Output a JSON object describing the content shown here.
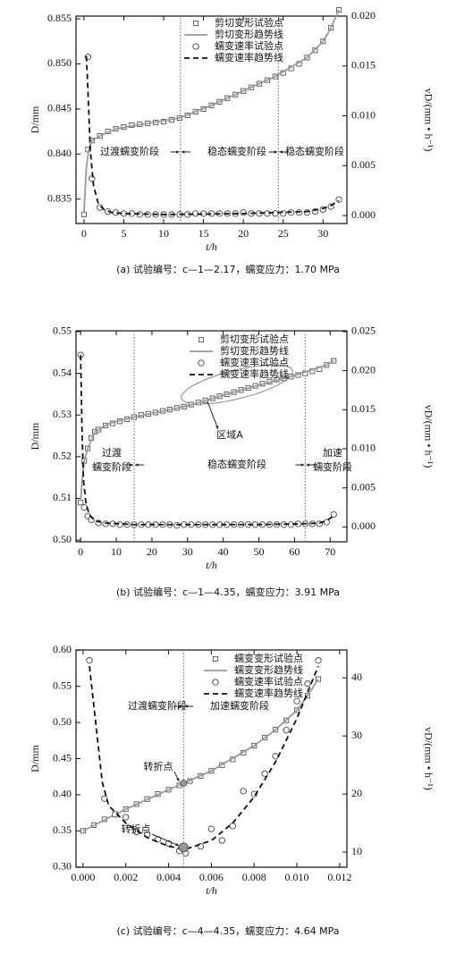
{
  "chart_data": [
    {
      "type": "scatter-line",
      "x_label": "t/h",
      "y_label": "D/mm",
      "y2_label": "vD/(mm • h⁻¹)",
      "caption": "(a) 试验编号：c—1—2.17，蠕变应力：1.70 MPa",
      "xlim": [
        -1,
        33
      ],
      "xticks": [
        0,
        5,
        10,
        15,
        20,
        25,
        30
      ],
      "ylim": [
        0.8323,
        0.8553
      ],
      "yticks": [
        {
          "value": 0.835,
          "label": "0.835"
        },
        {
          "value": 0.84,
          "label": "0.840"
        },
        {
          "value": 0.845,
          "label": "0.845"
        },
        {
          "value": 0.85,
          "label": "0.850"
        },
        {
          "value": 0.855,
          "label": "0.855"
        }
      ],
      "y2lim": [
        -0.0008,
        0.02
      ],
      "y2ticks": [
        {
          "value": 0,
          "label": "0.000"
        },
        {
          "value": 0.005,
          "label": "0.005"
        },
        {
          "value": 0.01,
          "label": "0.010"
        },
        {
          "value": 0.015,
          "label": "0.015"
        },
        {
          "value": 0.02,
          "label": "0.020"
        }
      ],
      "legend": "upper right",
      "vlines": [
        12.1,
        24.4
      ],
      "stages": [
        [
          "过渡蠕变阶段"
        ],
        [
          "稳态蠕变阶段"
        ],
        [
          "稳态蠕变阶段"
        ]
      ],
      "series": [
        {
          "name": "剪切变形试验点",
          "marker": "square",
          "color": "#555555",
          "axis": "y",
          "x": [
            0,
            0.5,
            1,
            2,
            3,
            4,
            5,
            6,
            7,
            8,
            9,
            10,
            11,
            12,
            13,
            14,
            15,
            16,
            17,
            18,
            19,
            20,
            21,
            22,
            23,
            24,
            25,
            26,
            27,
            28,
            29,
            30,
            31,
            32
          ],
          "values": [
            0.8333,
            0.8405,
            0.8415,
            0.842,
            0.8425,
            0.8428,
            0.843,
            0.8432,
            0.8433,
            0.8434,
            0.8435,
            0.8436,
            0.8438,
            0.844,
            0.8443,
            0.8447,
            0.845,
            0.8454,
            0.8458,
            0.8462,
            0.8466,
            0.847,
            0.8474,
            0.8478,
            0.8482,
            0.8486,
            0.849,
            0.8495,
            0.85,
            0.8507,
            0.8515,
            0.8525,
            0.854,
            0.856
          ]
        },
        {
          "name": "剪切变形趋势线",
          "marker": "line",
          "color": "#999999",
          "axis": "y",
          "x": [
            0,
            0.3,
            0.6,
            1,
            2,
            4,
            8,
            12,
            16,
            20,
            24,
            28,
            30,
            31,
            32
          ],
          "values": [
            0.8335,
            0.8385,
            0.8405,
            0.8415,
            0.842,
            0.8428,
            0.8434,
            0.844,
            0.8454,
            0.847,
            0.8486,
            0.8507,
            0.8525,
            0.854,
            0.856
          ]
        },
        {
          "name": "蠕变速率试验点",
          "marker": "circle",
          "color": "#444444",
          "axis": "y2",
          "x": [
            0.5,
            1,
            2,
            3,
            4,
            5,
            6,
            7,
            8,
            9,
            10,
            11,
            12,
            13,
            14,
            15,
            16,
            17,
            18,
            19,
            20,
            21,
            22,
            23,
            24,
            25,
            26,
            27,
            28,
            29,
            30,
            31,
            32
          ],
          "values": [
            0.0159,
            0.0037,
            0.0008,
            0.0004,
            0.0003,
            0.0002,
            0.0002,
            0.0001,
            0.0001,
            0.0001,
            0.0001,
            0.0001,
            0.0001,
            0.0001,
            0.0002,
            0.0002,
            0.0002,
            0.0002,
            0.0002,
            0.0002,
            0.0003,
            0.0002,
            0.0002,
            0.0002,
            0.0002,
            0.0002,
            0.0003,
            0.0003,
            0.0003,
            0.0004,
            0.0006,
            0.0009,
            0.0016
          ]
        },
        {
          "name": "蠕变速率趋势线",
          "marker": "dashed",
          "color": "#111111",
          "axis": "y2",
          "x": [
            0.3,
            0.5,
            0.8,
            1.2,
            1.8,
            2.5,
            3.5,
            5,
            10,
            20,
            28,
            30,
            31,
            32
          ],
          "values": [
            0.016,
            0.0125,
            0.0065,
            0.003,
            0.0012,
            0.0006,
            0.0003,
            0.0002,
            0.0001,
            0.0002,
            0.0004,
            0.0007,
            0.001,
            0.0015
          ]
        }
      ]
    },
    {
      "type": "scatter-line",
      "x_label": "t/h",
      "y_label": "D/mm",
      "y2_label": "vD/(mm • h⁻¹)",
      "caption": "(b) 试验编号：c—1—4.35，蠕变应力：3.91 MPa",
      "xlim": [
        -1.3,
        74.7
      ],
      "xticks": [
        0,
        10,
        20,
        30,
        40,
        50,
        60,
        70
      ],
      "ylim": [
        0.4996,
        0.5502
      ],
      "yticks": [
        {
          "value": 0.5,
          "label": "0.50"
        },
        0.51,
        0.52,
        0.53,
        0.54,
        0.55
      ],
      "y2lim": [
        -0.0019,
        0.0251
      ],
      "y2ticks": [
        {
          "value": 0,
          "label": "0.000"
        },
        {
          "value": 0.005,
          "label": "0.005"
        },
        {
          "value": 0.01,
          "label": "0.010"
        },
        {
          "value": 0.015,
          "label": "0.015"
        },
        {
          "value": 0.02,
          "label": "0.020"
        },
        {
          "value": 0.025,
          "label": "0.025"
        }
      ],
      "legend": "upper right",
      "vlines": [
        15,
        63
      ],
      "stages": [
        [
          "过渡",
          "蠕变阶段"
        ],
        [
          "稳态蠕变阶段"
        ],
        [
          "加速",
          "蠕变阶段"
        ]
      ],
      "annotations": [
        {
          "text": "区域A"
        }
      ],
      "series": [
        {
          "name": "剪切变形试验点",
          "marker": "square",
          "color": "#555555",
          "axis": "y",
          "x": [
            0,
            1,
            2,
            3,
            4,
            5,
            7,
            9,
            11,
            13,
            15,
            17,
            19,
            21,
            23,
            25,
            27,
            29,
            31,
            33,
            35,
            37,
            39,
            41,
            43,
            45,
            47,
            49,
            51,
            53,
            55,
            57,
            59,
            61,
            63,
            65,
            67,
            69,
            71
          ],
          "values": [
            0.509,
            0.519,
            0.522,
            0.5245,
            0.526,
            0.5265,
            0.5275,
            0.528,
            0.5285,
            0.529,
            0.5295,
            0.53,
            0.5303,
            0.5306,
            0.531,
            0.5313,
            0.5317,
            0.532,
            0.5325,
            0.533,
            0.5335,
            0.534,
            0.5345,
            0.535,
            0.5355,
            0.536,
            0.5365,
            0.537,
            0.5375,
            0.538,
            0.5385,
            0.5388,
            0.5392,
            0.5396,
            0.54,
            0.5405,
            0.541,
            0.542,
            0.543
          ]
        },
        {
          "name": "剪切变形趋势线",
          "marker": "line",
          "color": "#999999",
          "axis": "y",
          "x": [
            0,
            0.5,
            1,
            2,
            4,
            8,
            15,
            30,
            45,
            60,
            66,
            69,
            71
          ],
          "values": [
            0.5095,
            0.515,
            0.519,
            0.522,
            0.526,
            0.528,
            0.5295,
            0.5322,
            0.536,
            0.5395,
            0.5412,
            0.542,
            0.543
          ]
        },
        {
          "name": "蠕变速率试验点",
          "marker": "circle",
          "color": "#444444",
          "axis": "y2",
          "x": [
            0,
            1,
            2,
            3,
            5,
            7,
            9,
            11,
            13,
            15,
            17,
            19,
            21,
            23,
            25,
            27,
            29,
            31,
            33,
            35,
            37,
            39,
            41,
            43,
            45,
            47,
            49,
            51,
            53,
            55,
            57,
            59,
            61,
            63,
            65,
            67,
            69,
            71
          ],
          "values": [
            0.022,
            0.0025,
            0.0014,
            0.0009,
            0.0005,
            0.0004,
            0.0004,
            0.0003,
            0.0003,
            0.0003,
            0.0003,
            0.0003,
            0.0003,
            0.0003,
            0.0003,
            0.0002,
            0.0003,
            0.0003,
            0.0003,
            0.0003,
            0.0003,
            0.0003,
            0.0003,
            0.0003,
            0.0003,
            0.0003,
            0.0003,
            0.0003,
            0.0003,
            0.0003,
            0.0003,
            0.0003,
            0.0004,
            0.0004,
            0.0004,
            0.0004,
            0.0006,
            0.0016
          ]
        },
        {
          "name": "蠕变速率趋势线",
          "marker": "dashed",
          "color": "#111111",
          "axis": "y2",
          "x": [
            0,
            0.4,
            0.8,
            1.5,
            2.5,
            4,
            7,
            15,
            30,
            50,
            62,
            67,
            69,
            71
          ],
          "values": [
            0.022,
            0.012,
            0.006,
            0.003,
            0.0015,
            0.0008,
            0.0005,
            0.0003,
            0.0003,
            0.0003,
            0.0004,
            0.0005,
            0.0008,
            0.0014
          ]
        }
      ]
    },
    {
      "type": "scatter-line",
      "x_label": "t/h",
      "y_label": "D/mm",
      "y2_label": "vD/(mm • h⁻¹)",
      "caption": "(c) 试验编号：c—4—4.35，蠕变应力：4.64 MPa",
      "xlim": [
        -0.00033,
        0.01234
      ],
      "xticks": [
        {
          "value": 0,
          "label": "0.000"
        },
        {
          "value": 0.002,
          "label": "0.002"
        },
        {
          "value": 0.004,
          "label": "0.004"
        },
        {
          "value": 0.006,
          "label": "0.006"
        },
        {
          "value": 0.008,
          "label": "0.008"
        },
        {
          "value": 0.01,
          "label": "0.010"
        },
        {
          "value": 0.012,
          "label": "0.012"
        }
      ],
      "ylim": [
        0.2997,
        0.6003
      ],
      "yticks": [
        {
          "value": 0.3,
          "label": "0.30"
        },
        0.35,
        {
          "value": 0.4,
          "label": "0.40"
        },
        0.45,
        {
          "value": 0.5,
          "label": "0.50"
        },
        0.55,
        {
          "value": 0.6,
          "label": "0.60"
        }
      ],
      "y2lim": [
        7.4,
        44.8
      ],
      "y2ticks": [
        10,
        20,
        30,
        40
      ],
      "legend": "upper right",
      "vlines": [
        0.0047
      ],
      "stages": [
        [
          "过渡蠕变阶段"
        ],
        [
          "加速蠕变阶段"
        ]
      ],
      "annotations": [
        {
          "text": "转折点",
          "x": 0.0047,
          "y": 0.416
        },
        {
          "text": "转折点",
          "x": 0.0047,
          "y": 10.8,
          "axis": "y2"
        }
      ],
      "series": [
        {
          "name": "蠕变变形试验点",
          "marker": "square",
          "color": "#555555",
          "axis": "y",
          "x": [
            0,
            0.0005,
            0.001,
            0.0015,
            0.002,
            0.0025,
            0.003,
            0.0035,
            0.004,
            0.0045,
            0.005,
            0.0055,
            0.006,
            0.0065,
            0.007,
            0.0075,
            0.008,
            0.0085,
            0.009,
            0.0095,
            0.01,
            0.0105,
            0.011
          ],
          "values": [
            0.35,
            0.358,
            0.366,
            0.373,
            0.38,
            0.387,
            0.394,
            0.401,
            0.407,
            0.413,
            0.419,
            0.426,
            0.433,
            0.441,
            0.449,
            0.458,
            0.468,
            0.479,
            0.49,
            0.503,
            0.517,
            0.537,
            0.56
          ]
        },
        {
          "name": "蠕变变形趋势线",
          "marker": "line",
          "color": "#999999",
          "axis": "y",
          "x": [
            0,
            0.002,
            0.004,
            0.006,
            0.008,
            0.009,
            0.01,
            0.0105,
            0.011
          ],
          "values": [
            0.35,
            0.38,
            0.407,
            0.433,
            0.468,
            0.49,
            0.517,
            0.537,
            0.56
          ]
        },
        {
          "name": "蠕变速率试验点",
          "marker": "circle",
          "color": "#444444",
          "axis": "y2",
          "x": [
            0.0003,
            0.001,
            0.0015,
            0.002,
            0.0025,
            0.003,
            0.0035,
            0.004,
            0.0045,
            0.0048,
            0.0055,
            0.006,
            0.0065,
            0.007,
            0.0075,
            0.008,
            0.0085,
            0.009,
            0.0095,
            0.01,
            0.0105,
            0.011
          ],
          "values": [
            43,
            19.2,
            16.5,
            16,
            13.5,
            13,
            12.2,
            11.5,
            10.2,
            9.8,
            11,
            14,
            12,
            14.5,
            20.5,
            20,
            23.5,
            26.5,
            31,
            36,
            39,
            43
          ]
        },
        {
          "name": "蠕变速率趋势线",
          "marker": "dashed",
          "color": "#111111",
          "axis": "y2",
          "x": [
            0.0003,
            0.0006,
            0.0009,
            0.0012,
            0.002,
            0.003,
            0.004,
            0.0048,
            0.006,
            0.007,
            0.008,
            0.009,
            0.01,
            0.011
          ],
          "values": [
            42,
            32,
            22,
            18,
            15,
            12.5,
            11,
            10.5,
            12,
            15,
            19.5,
            25.5,
            33,
            42
          ]
        }
      ]
    }
  ]
}
